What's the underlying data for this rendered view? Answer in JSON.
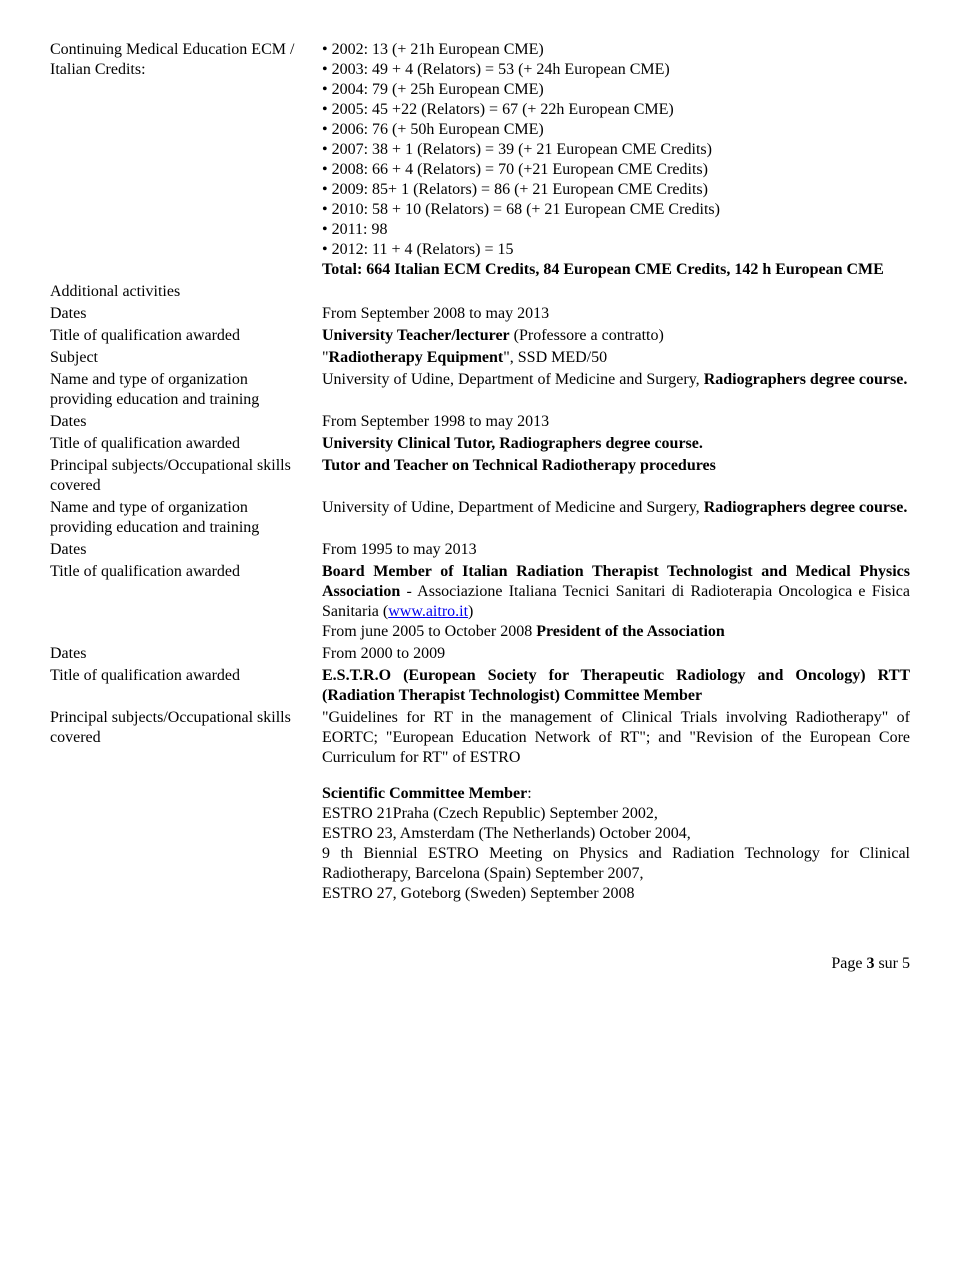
{
  "left": {
    "cme": "Continuing Medical Education ECM / Italian Credits:",
    "additional": "Additional activities",
    "dates": "Dates",
    "title_qual": "Title of qualification awarded",
    "subject": "Subject",
    "org": "Name and type of organization providing education and training",
    "principal": "Principal subjects/Occupational skills covered"
  },
  "cme_items": [
    "2002: 13 (+ 21h European CME)",
    "2003: 49 + 4 (Relators) = 53 (+ 24h European CME)",
    "2004: 79 (+ 25h European CME)",
    "2005: 45 +22 (Relators) = 67 (+ 22h European CME)",
    "2006: 76 (+ 50h European CME)",
    "2007: 38 + 1 (Relators) = 39 (+ 21 European CME Credits)",
    "2008: 66 + 4 (Relators) = 70 (+21 European CME Credits)",
    "2009: 85+ 1 (Relators) = 86 (+ 21 European CME Credits)",
    "2010: 58 + 10 (Relators) = 68 (+ 21 European CME Credits)",
    "2011: 98",
    "2012: 11 + 4 (Relators) = 15"
  ],
  "total_label": "Total:  664 Italian ECM Credits, 84 European CME Credits, 142 h European CME",
  "a1": {
    "dates": "From September 2008 to may 2013",
    "title_pre": "University Teacher/lecturer",
    "title_post": " (Professore a contratto)",
    "subject_q": "\"",
    "subject_bold": "Radiotherapy Equipment",
    "subject_post": "\", SSD MED/50",
    "org_pre": "University of Udine, Department of Medicine and Surgery, ",
    "org_bold": "Radiographers degree course."
  },
  "a2": {
    "dates": "From September 1998 to may 2013",
    "title": "University Clinical Tutor, Radiographers degree course.",
    "principal": "Tutor and Teacher on Technical Radiotherapy procedures",
    "org_pre": "University of Udine, Department of Medicine and Surgery, ",
    "org_bold": "Radiographers degree course."
  },
  "a3": {
    "dates": "From 1995 to may 2013",
    "title_bold1": "Board Member of Italian Radiation Therapist Technologist and Medical Physics Association",
    "title_post1": " - Associazione Italiana Tecnici Sanitari di Radioterapia Oncologica e Fisica Sanitaria (",
    "link_text": "www.aitro.it",
    "link_href": "http://www.aitro.it",
    "title_post2": ")",
    "line2_pre": "From june 2005 to October 2008 ",
    "line2_bold": "President of the Association"
  },
  "a4": {
    "dates": "From 2000 to 2009",
    "title_bold": "E.S.T.R.O (European Society for Therapeutic Radiology and Oncology) RTT (Radiation Therapist Technologist) Committee Member",
    "principal": "\"Guidelines for RT in the management of Clinical Trials involving Radiotherapy\" of EORTC; \"European Education Network of RT\"; and \"Revision of the European Core Curriculum for RT\" of ESTRO"
  },
  "sci": {
    "header": "Scientific Committee Member",
    "colon": ":",
    "l1": "ESTRO 21Praha (Czech Republic) September 2002,",
    "l2": "ESTRO 23, Amsterdam (The Netherlands) October 2004,",
    "l3": "9 th Biennial ESTRO Meeting on Physics and Radiation Technology for Clinical Radiotherapy, Barcelona (Spain) September 2007,",
    "l4": "ESTRO 27, Goteborg (Sweden) September 2008"
  },
  "footer_pre": "Page ",
  "footer_bold": "3",
  "footer_post": " sur 5"
}
